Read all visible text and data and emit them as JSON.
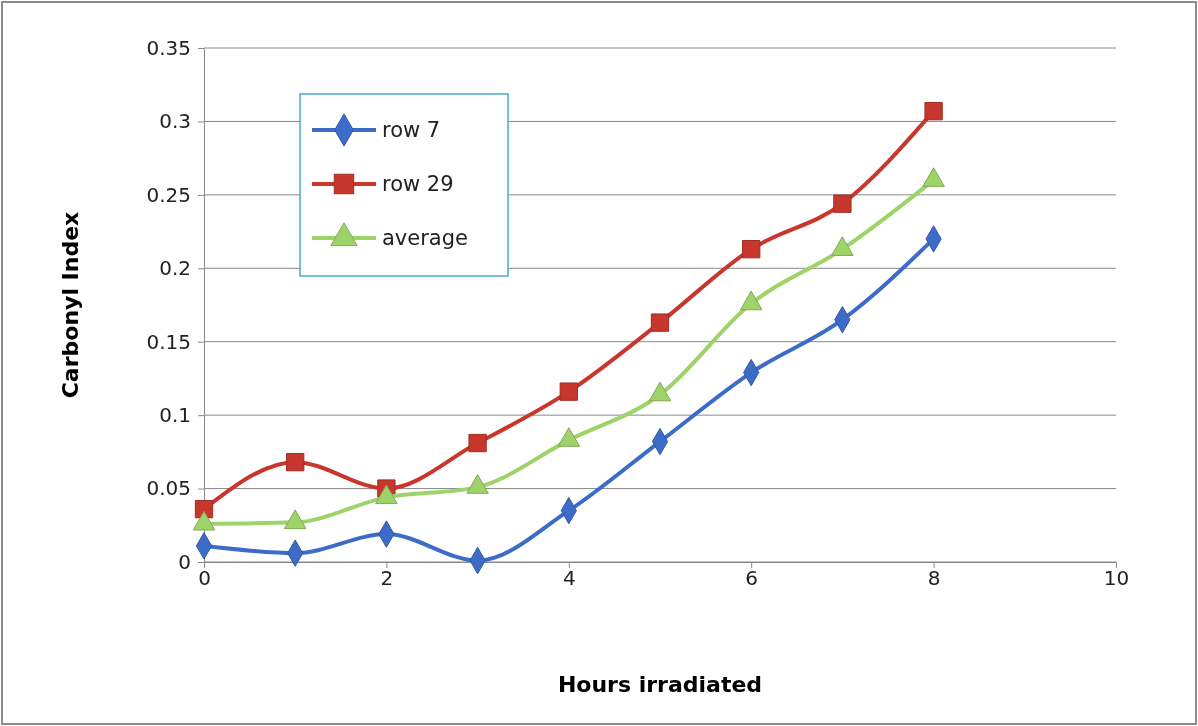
{
  "chart_data": {
    "type": "line",
    "xlabel": "Hours irradiated",
    "ylabel": "Carbonyl Index",
    "x": [
      0,
      1,
      2,
      3,
      4,
      5,
      6,
      7,
      8
    ],
    "xlim": [
      0,
      10
    ],
    "xticks": [
      0,
      2,
      4,
      6,
      8,
      10
    ],
    "ylim": [
      0,
      0.35
    ],
    "yticks": [
      0,
      0.05,
      0.1,
      0.15,
      0.2,
      0.25,
      0.3,
      0.35
    ],
    "grid": "y",
    "legend": "top left",
    "line_style": "solid",
    "series": [
      {
        "name": "row 7",
        "color": "#3d6cc8",
        "marker": "diamond",
        "values": [
          0.011,
          0.006,
          0.019,
          0.001,
          0.035,
          0.082,
          0.129,
          0.165,
          0.22
        ]
      },
      {
        "name": "row 29",
        "color": "#c8372d",
        "marker": "square",
        "values": [
          0.036,
          0.068,
          0.05,
          0.081,
          0.116,
          0.163,
          0.213,
          0.244,
          0.307
        ]
      },
      {
        "name": "average",
        "color": "#9ed36a",
        "marker": "triangle",
        "values": [
          0.026,
          0.027,
          0.044,
          0.051,
          0.083,
          0.114,
          0.176,
          0.213,
          0.26
        ]
      }
    ]
  }
}
